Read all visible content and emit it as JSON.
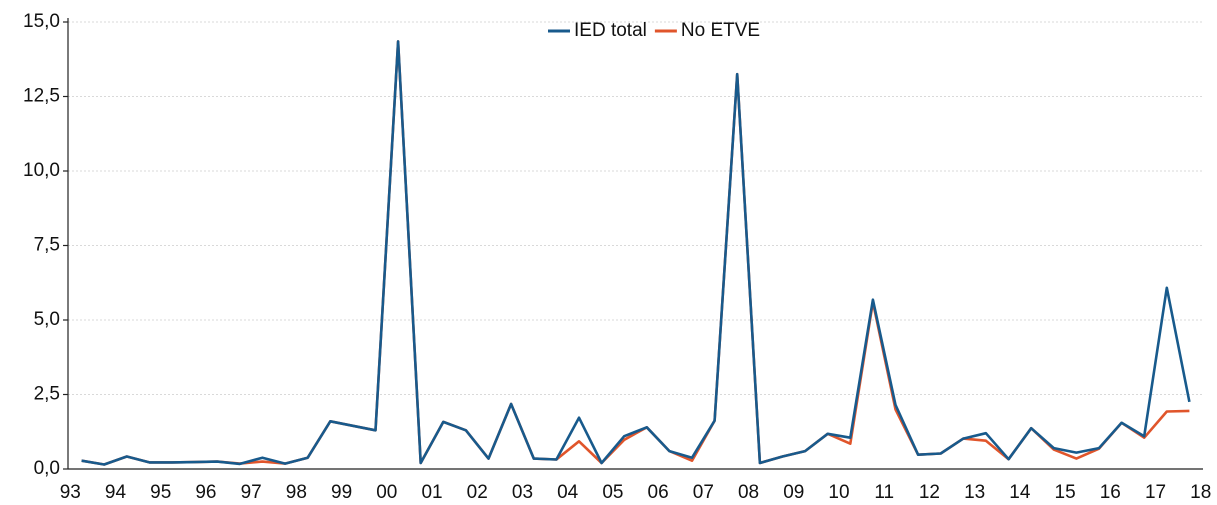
{
  "chart_data": {
    "type": "line",
    "x": [
      1993,
      1993.5,
      1994,
      1994.5,
      1995,
      1995.5,
      1996,
      1996.5,
      1997,
      1997.5,
      1998,
      1998.5,
      1999,
      1999.5,
      2000,
      2000.5,
      2001,
      2001.5,
      2002,
      2002.5,
      2003,
      2003.5,
      2004,
      2004.5,
      2005,
      2005.5,
      2006,
      2006.5,
      2007,
      2007.5,
      2008,
      2008.5,
      2009,
      2009.5,
      2010,
      2010.5,
      2011,
      2011.5,
      2012,
      2012.5,
      2013,
      2013.5,
      2014,
      2014.5,
      2015,
      2015.5,
      2016,
      2016.5,
      2017,
      2017.5
    ],
    "series": [
      {
        "name": "No ETVE",
        "color": "#e0552b",
        "values": [
          0.28,
          0.15,
          0.42,
          0.22,
          0.22,
          0.23,
          0.25,
          0.18,
          0.25,
          0.18,
          0.38,
          1.6,
          1.45,
          1.3,
          14.35,
          0.2,
          1.58,
          1.3,
          0.35,
          2.18,
          0.35,
          0.32,
          0.93,
          0.2,
          0.98,
          1.4,
          0.6,
          0.28,
          1.62,
          13.25,
          0.2,
          0.42,
          0.6,
          1.18,
          0.85,
          5.6,
          2.0,
          0.48,
          0.52,
          1.02,
          0.95,
          0.33,
          1.37,
          0.65,
          0.35,
          0.68,
          1.55,
          1.05,
          1.93,
          1.95
        ]
      },
      {
        "name": "IED total",
        "color": "#185a8c",
        "values": [
          0.28,
          0.15,
          0.42,
          0.22,
          0.22,
          0.23,
          0.25,
          0.17,
          0.38,
          0.18,
          0.38,
          1.6,
          1.45,
          1.3,
          14.35,
          0.2,
          1.58,
          1.3,
          0.35,
          2.18,
          0.35,
          0.32,
          1.72,
          0.2,
          1.1,
          1.4,
          0.6,
          0.38,
          1.62,
          13.25,
          0.2,
          0.42,
          0.6,
          1.18,
          1.05,
          5.68,
          2.15,
          0.48,
          0.52,
          1.02,
          1.2,
          0.33,
          1.37,
          0.7,
          0.55,
          0.7,
          1.55,
          1.1,
          6.08,
          2.25
        ]
      }
    ],
    "xlim": [
      1992.7,
      2017.8
    ],
    "xticks": [
      {
        "value": 1992.75,
        "label": "93"
      },
      {
        "value": 1993.75,
        "label": "94"
      },
      {
        "value": 1994.75,
        "label": "95"
      },
      {
        "value": 1995.75,
        "label": "96"
      },
      {
        "value": 1996.75,
        "label": "97"
      },
      {
        "value": 1997.75,
        "label": "98"
      },
      {
        "value": 1998.75,
        "label": "99"
      },
      {
        "value": 1999.75,
        "label": "00"
      },
      {
        "value": 2000.75,
        "label": "01"
      },
      {
        "value": 2001.75,
        "label": "02"
      },
      {
        "value": 2002.75,
        "label": "03"
      },
      {
        "value": 2003.75,
        "label": "04"
      },
      {
        "value": 2004.75,
        "label": "05"
      },
      {
        "value": 2005.75,
        "label": "06"
      },
      {
        "value": 2006.75,
        "label": "07"
      },
      {
        "value": 2007.75,
        "label": "08"
      },
      {
        "value": 2008.75,
        "label": "09"
      },
      {
        "value": 2009.75,
        "label": "10"
      },
      {
        "value": 2010.75,
        "label": "11"
      },
      {
        "value": 2011.75,
        "label": "12"
      },
      {
        "value": 2012.75,
        "label": "13"
      },
      {
        "value": 2013.75,
        "label": "14"
      },
      {
        "value": 2014.75,
        "label": "15"
      },
      {
        "value": 2015.75,
        "label": "16"
      },
      {
        "value": 2016.75,
        "label": "17"
      },
      {
        "value": 2017.75,
        "label": "18"
      }
    ],
    "ylim": [
      0,
      15
    ],
    "yticks": [
      {
        "value": 0,
        "label": "0,0"
      },
      {
        "value": 2.5,
        "label": "2,5"
      },
      {
        "value": 5,
        "label": "5,0"
      },
      {
        "value": 7.5,
        "label": "7,5"
      },
      {
        "value": 10,
        "label": "10,0"
      },
      {
        "value": 12.5,
        "label": "12,5"
      },
      {
        "value": 15,
        "label": "15,0"
      }
    ],
    "grid": true,
    "legend": "top"
  }
}
